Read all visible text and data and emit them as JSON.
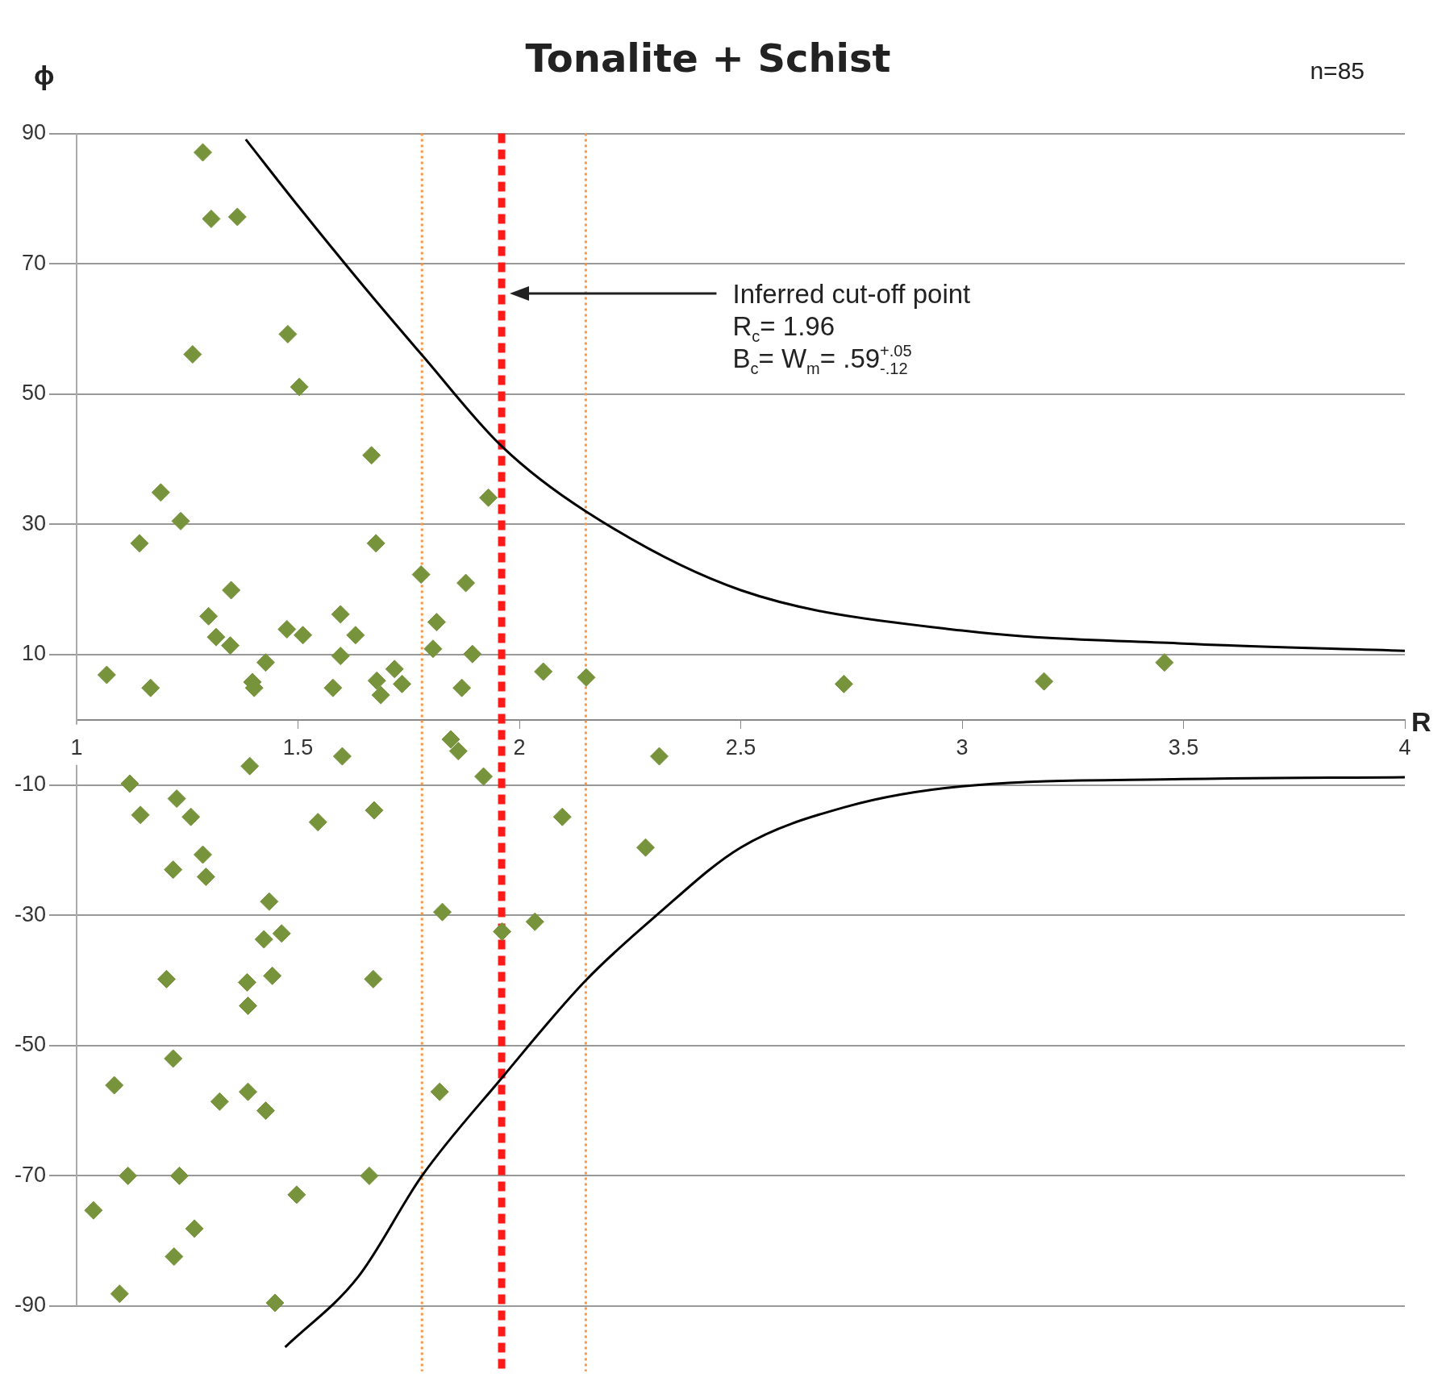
{
  "chart_data": {
    "type": "scatter",
    "title": "Tonalite + Schist",
    "xlabel": "R",
    "ylabel": "ϕ",
    "xlim": [
      1,
      4
    ],
    "xticks": [
      1,
      1.5,
      2,
      2.5,
      3,
      3.5,
      4
    ],
    "ylim": [
      -100,
      90
    ],
    "yticks": [
      -90,
      -70,
      -50,
      -30,
      -10,
      10,
      30,
      50,
      70,
      90
    ],
    "grid": "y",
    "legend": false,
    "series": [
      {
        "type": "scatter",
        "color": "#77933c",
        "marker": "diamond",
        "x": [
          1.285,
          1.304,
          1.363,
          1.477,
          1.262,
          1.503,
          1.666,
          1.19,
          1.235,
          1.142,
          1.676,
          1.93,
          1.778,
          1.879,
          1.349,
          1.298,
          1.596,
          1.813,
          1.315,
          1.347,
          1.475,
          1.511,
          1.63,
          1.596,
          1.805,
          1.894,
          1.427,
          1.718,
          1.068,
          1.397,
          1.401,
          1.167,
          1.579,
          1.678,
          1.687,
          1.735,
          1.87,
          2.054,
          2.151,
          2.733,
          3.185,
          3.457,
          1.391,
          1.6,
          1.845,
          1.862,
          2.316,
          1.919,
          1.12,
          1.144,
          1.226,
          1.258,
          1.672,
          2.097,
          1.545,
          2.285,
          1.285,
          1.218,
          1.292,
          1.435,
          1.826,
          2.035,
          1.423,
          1.463,
          1.961,
          1.203,
          1.385,
          1.442,
          1.67,
          1.387,
          1.218,
          1.085,
          1.387,
          1.82,
          1.323,
          1.427,
          1.116,
          1.232,
          1.661,
          1.497,
          1.038,
          1.266,
          1.22,
          1.097,
          1.448
        ],
        "values": [
          87.1,
          76.9,
          77.2,
          59.2,
          56.1,
          51.1,
          40.6,
          34.9,
          30.5,
          27.1,
          27.1,
          34.1,
          22.3,
          21.0,
          19.9,
          15.9,
          16.2,
          15.0,
          12.7,
          11.4,
          13.9,
          13.0,
          13.0,
          9.8,
          10.9,
          10.1,
          8.8,
          7.8,
          6.9,
          5.8,
          4.9,
          4.9,
          4.9,
          6.0,
          3.8,
          5.5,
          4.9,
          7.4,
          6.5,
          5.5,
          5.9,
          8.8,
          -7.1,
          -5.6,
          -3.0,
          -4.8,
          -5.6,
          -8.7,
          -9.8,
          -14.6,
          -12.1,
          -14.9,
          -13.9,
          -14.9,
          -15.7,
          -19.6,
          -20.7,
          -23.0,
          -24.1,
          -27.9,
          -29.5,
          -31.0,
          -33.7,
          -32.8,
          -32.5,
          -39.8,
          -40.3,
          -39.3,
          -39.8,
          -43.9,
          -52.0,
          -56.1,
          -57.1,
          -57.1,
          -58.6,
          -60.0,
          -70.0,
          -70.0,
          -70.0,
          -72.9,
          -75.3,
          -78.1,
          -82.4,
          -88.1,
          -89.5
        ]
      },
      {
        "type": "line",
        "color": "#000000",
        "marker": "none",
        "x": [
          1.382,
          1.5,
          1.65,
          1.78,
          1.96,
          2.15,
          2.5,
          3,
          3.5,
          4
        ],
        "values": [
          89.1,
          78.9,
          66.4,
          56,
          42,
          32,
          19.9,
          13.7,
          11.7,
          10.6
        ]
      },
      {
        "type": "line",
        "color": "#000000",
        "marker": "none",
        "x": [
          1.471,
          1.636,
          1.78,
          1.96,
          2.15,
          2.31,
          2.5,
          2.735,
          3,
          3.5,
          4
        ],
        "values": [
          -96.3,
          -85.5,
          -70,
          -55,
          -40,
          -30,
          -19.6,
          -13.4,
          -10.2,
          -9.1,
          -8.8
        ]
      }
    ],
    "ref_lines": [
      {
        "axis": "x",
        "value": 1.96,
        "color": "#ff1a1a",
        "line_style": "dashed"
      },
      {
        "axis": "x",
        "value": 1.78,
        "color": "#f79646",
        "line_style": "dotted"
      },
      {
        "axis": "x",
        "value": 2.15,
        "color": "#f79646",
        "line_style": "dotted"
      }
    ],
    "annotations": [
      "Inferred cut-off point",
      "R$_{c}$= 1.96",
      "B$_{c}$= W$_{m}$= .59$^{+.05}$$_{-.12}$",
      "n=85"
    ]
  }
}
